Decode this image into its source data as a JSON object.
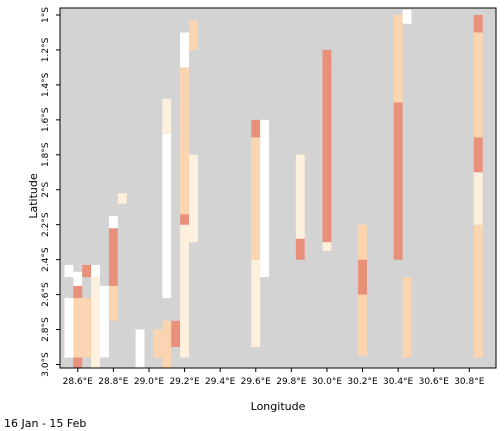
{
  "chart_data": {
    "type": "heatmap",
    "title": "",
    "xlabel": "Longitude",
    "ylabel": "Latitude",
    "xlim": [
      28.5,
      30.95
    ],
    "ylim": [
      -3.02,
      -0.96
    ],
    "x_tick_values": [
      28.6,
      28.8,
      29.0,
      29.2,
      29.4,
      29.6,
      29.8,
      30.0,
      30.2,
      30.4,
      30.6,
      30.8
    ],
    "x_tick_labels": [
      "28.6°E",
      "28.8°E",
      "29.0°E",
      "29.2°E",
      "29.4°E",
      "29.6°E",
      "29.8°E",
      "30.0°E",
      "30.2°E",
      "30.4°E",
      "30.6°E",
      "30.8°E"
    ],
    "y_tick_values": [
      -1.0,
      -1.2,
      -1.4,
      -1.6,
      -1.8,
      -2.0,
      -2.2,
      -2.4,
      -2.6,
      -2.8,
      -3.0
    ],
    "y_tick_labels": [
      "1°S",
      "1.2°S",
      "1.4°S",
      "1.6°S",
      "1.8°S",
      "2°S",
      "2.2°S",
      "2.4°S",
      "2.6°S",
      "2.8°S",
      "3.0°S"
    ],
    "cell_size_deg": 0.05,
    "category_colors": {
      "no_data": "#d3d3d3",
      "zero": "#ffffff",
      "low": "#fdf0dc",
      "medium": "#fbd5b0",
      "high": "#e8907a",
      "coast": "#000000"
    },
    "columns": [
      {
        "lon": 28.6,
        "runs": [
          {
            "lat0": -3.02,
            "lat1": -2.96,
            "level": "high"
          },
          {
            "lat0": -2.96,
            "lat1": -2.62,
            "level": "medium"
          },
          {
            "lat0": -2.62,
            "lat1": -2.55,
            "level": "high"
          },
          {
            "lat0": -2.55,
            "lat1": -2.47,
            "level": "zero"
          }
        ]
      },
      {
        "lon": 28.55,
        "runs": [
          {
            "lat0": -2.96,
            "lat1": -2.62,
            "level": "zero"
          },
          {
            "lat0": -2.5,
            "lat1": -2.43,
            "level": "zero"
          }
        ]
      },
      {
        "lon": 28.65,
        "runs": [
          {
            "lat0": -2.96,
            "lat1": -2.62,
            "level": "medium"
          },
          {
            "lat0": -2.5,
            "lat1": -2.43,
            "level": "high"
          }
        ]
      },
      {
        "lon": 28.7,
        "runs": [
          {
            "lat0": -3.02,
            "lat1": -2.5,
            "level": "low"
          },
          {
            "lat0": -2.5,
            "lat1": -2.43,
            "level": "zero"
          }
        ]
      },
      {
        "lon": 28.8,
        "runs": [
          {
            "lat0": -2.75,
            "lat1": -2.55,
            "level": "medium"
          },
          {
            "lat0": -2.55,
            "lat1": -2.22,
            "level": "high"
          },
          {
            "lat0": -2.22,
            "lat1": -2.15,
            "level": "zero"
          }
        ]
      },
      {
        "lon": 28.75,
        "runs": [
          {
            "lat0": -2.96,
            "lat1": -2.55,
            "level": "zero"
          }
        ]
      },
      {
        "lon": 28.85,
        "runs": [
          {
            "lat0": -2.08,
            "lat1": -2.02,
            "level": "low"
          }
        ]
      },
      {
        "lon": 28.95,
        "runs": [
          {
            "lat0": -3.02,
            "lat1": -2.8,
            "level": "zero"
          }
        ]
      },
      {
        "lon": 29.05,
        "runs": [
          {
            "lat0": -2.96,
            "lat1": -2.8,
            "level": "medium"
          }
        ]
      },
      {
        "lon": 29.1,
        "runs": [
          {
            "lat0": -3.02,
            "lat1": -2.75,
            "level": "medium"
          },
          {
            "lat0": -2.62,
            "lat1": -1.68,
            "level": "zero"
          },
          {
            "lat0": -1.68,
            "lat1": -1.48,
            "level": "low"
          }
        ]
      },
      {
        "lon": 29.15,
        "runs": [
          {
            "lat0": -2.9,
            "lat1": -2.75,
            "level": "high"
          }
        ]
      },
      {
        "lon": 29.2,
        "runs": [
          {
            "lat0": -2.96,
            "lat1": -2.2,
            "level": "low"
          },
          {
            "lat0": -2.2,
            "lat1": -2.14,
            "level": "high"
          },
          {
            "lat0": -2.14,
            "lat1": -1.3,
            "level": "medium"
          },
          {
            "lat0": -1.3,
            "lat1": -1.1,
            "level": "zero"
          }
        ]
      },
      {
        "lon": 29.25,
        "runs": [
          {
            "lat0": -2.3,
            "lat1": -1.8,
            "level": "low"
          },
          {
            "lat0": -1.2,
            "lat1": -1.03,
            "level": "medium"
          }
        ]
      },
      {
        "lon": 29.6,
        "runs": [
          {
            "lat0": -2.9,
            "lat1": -2.4,
            "level": "low"
          },
          {
            "lat0": -2.4,
            "lat1": -1.7,
            "level": "medium"
          },
          {
            "lat0": -1.7,
            "lat1": -1.6,
            "level": "high"
          }
        ]
      },
      {
        "lon": 29.65,
        "runs": [
          {
            "lat0": -2.5,
            "lat1": -1.6,
            "level": "zero"
          }
        ]
      },
      {
        "lon": 29.85,
        "runs": [
          {
            "lat0": -2.4,
            "lat1": -2.28,
            "level": "high"
          },
          {
            "lat0": -2.28,
            "lat1": -1.8,
            "level": "low"
          }
        ]
      },
      {
        "lon": 30.0,
        "runs": [
          {
            "lat0": -2.35,
            "lat1": -1.3,
            "level": "low"
          },
          {
            "lat0": -2.3,
            "lat1": -1.2,
            "level": "high"
          }
        ]
      },
      {
        "lon": 30.2,
        "runs": [
          {
            "lat0": -2.95,
            "lat1": -2.2,
            "level": "medium"
          },
          {
            "lat0": -2.6,
            "lat1": -2.4,
            "level": "high"
          }
        ]
      },
      {
        "lon": 30.4,
        "runs": [
          {
            "lat0": -2.4,
            "lat1": -1.5,
            "level": "high"
          },
          {
            "lat0": -1.5,
            "lat1": -1.0,
            "level": "medium"
          }
        ]
      },
      {
        "lon": 30.45,
        "runs": [
          {
            "lat0": -2.96,
            "lat1": -2.5,
            "level": "medium"
          },
          {
            "lat0": -1.05,
            "lat1": -0.97,
            "level": "zero"
          }
        ]
      },
      {
        "lon": 30.85,
        "runs": [
          {
            "lat0": -2.96,
            "lat1": -2.2,
            "level": "medium"
          },
          {
            "lat0": -2.2,
            "lat1": -1.9,
            "level": "low"
          },
          {
            "lat0": -1.9,
            "lat1": -1.7,
            "level": "high"
          },
          {
            "lat0": -1.7,
            "lat1": -1.1,
            "level": "medium"
          },
          {
            "lat0": -1.1,
            "lat1": -1.0,
            "level": "high"
          }
        ]
      }
    ]
  },
  "period_label": "16 Jan - 15 Feb"
}
